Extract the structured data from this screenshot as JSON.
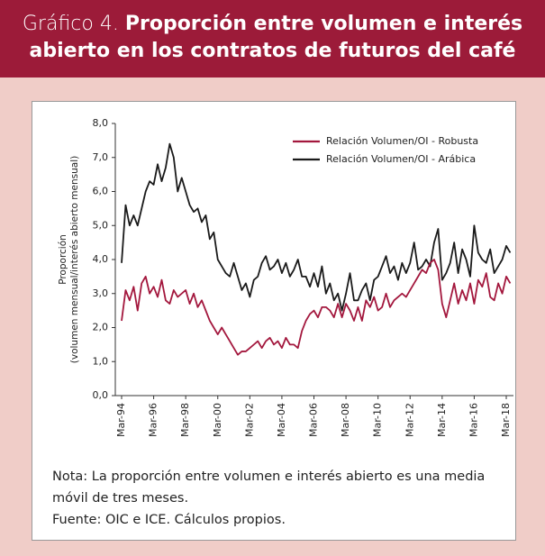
{
  "chart_data": {
    "type": "line",
    "title_label": "Gráfico 4.",
    "title": [
      "Proporción entre volumen e interés",
      "abierto en los contratos de futuros del café"
    ],
    "ylabel": [
      "Proporción",
      "(volumen mensual/interés abierto mensual)"
    ],
    "notes": [
      "Nota: La proporción entre volumen e interés abierto es una media",
      "móvil de tres meses.",
      "Fuente: OIC e ICE. Cálculos propios."
    ],
    "categories": [
      "Mar-94",
      null,
      null,
      null,
      null,
      null,
      null,
      null,
      "Mar-96",
      null,
      null,
      null,
      null,
      null,
      null,
      null,
      "Mar-98",
      null,
      null,
      null,
      null,
      null,
      null,
      null,
      "Mar-00",
      null,
      null,
      null,
      null,
      null,
      null,
      null,
      "Mar-02",
      null,
      null,
      null,
      null,
      null,
      null,
      null,
      "Mar-04",
      null,
      null,
      null,
      null,
      null,
      null,
      null,
      "Mar-06",
      null,
      null,
      null,
      null,
      null,
      null,
      null,
      "Mar-08",
      null,
      null,
      null,
      null,
      null,
      null,
      null,
      "Mar-10",
      null,
      null,
      null,
      null,
      null,
      null,
      null,
      "Mar-12",
      null,
      null,
      null,
      null,
      null,
      null,
      null,
      "Mar-14",
      null,
      null,
      null,
      null,
      null,
      null,
      null,
      "Mar-16",
      null,
      null,
      null,
      null,
      null,
      null,
      null,
      "Mar-18",
      null
    ],
    "series": [
      {
        "name": "Relación Volumen/OI - Robusta",
        "color": "#a3173d",
        "values": [
          2.2,
          3.1,
          2.8,
          3.2,
          2.5,
          3.3,
          3.5,
          3.0,
          3.2,
          2.9,
          3.4,
          2.8,
          2.7,
          3.1,
          2.9,
          3.0,
          3.1,
          2.7,
          3.0,
          2.6,
          2.8,
          2.5,
          2.2,
          2.0,
          1.8,
          2.0,
          1.8,
          1.6,
          1.4,
          1.2,
          1.3,
          1.3,
          1.4,
          1.5,
          1.6,
          1.4,
          1.6,
          1.7,
          1.5,
          1.6,
          1.4,
          1.7,
          1.5,
          1.5,
          1.4,
          1.9,
          2.2,
          2.4,
          2.5,
          2.3,
          2.6,
          2.6,
          2.5,
          2.3,
          2.7,
          2.3,
          2.7,
          2.5,
          2.2,
          2.6,
          2.2,
          2.8,
          2.6,
          2.9,
          2.5,
          2.6,
          3.0,
          2.6,
          2.8,
          2.9,
          3.0,
          2.9,
          3.1,
          3.3,
          3.5,
          3.7,
          3.6,
          3.9,
          4.0,
          3.7,
          2.7,
          2.3,
          2.8,
          3.3,
          2.7,
          3.1,
          2.8,
          3.3,
          2.7,
          3.4,
          3.2,
          3.6,
          2.9,
          2.8,
          3.3,
          3.0,
          3.5,
          3.3
        ]
      },
      {
        "name": "Relación Volumen/OI - Arábica",
        "color": "#1a1a1a",
        "values": [
          3.9,
          5.6,
          5.0,
          5.3,
          5.0,
          5.5,
          6.0,
          6.3,
          6.2,
          6.8,
          6.3,
          6.7,
          7.4,
          7.0,
          6.0,
          6.4,
          6.0,
          5.6,
          5.4,
          5.5,
          5.1,
          5.3,
          4.6,
          4.8,
          4.0,
          3.8,
          3.6,
          3.5,
          3.9,
          3.5,
          3.1,
          3.3,
          2.9,
          3.4,
          3.5,
          3.9,
          4.1,
          3.7,
          3.8,
          4.0,
          3.6,
          3.9,
          3.5,
          3.7,
          4.0,
          3.5,
          3.5,
          3.2,
          3.6,
          3.2,
          3.8,
          3.0,
          3.3,
          2.8,
          3.0,
          2.5,
          3.0,
          3.6,
          2.8,
          2.8,
          3.1,
          3.3,
          2.8,
          3.4,
          3.5,
          3.8,
          4.1,
          3.6,
          3.8,
          3.4,
          3.9,
          3.6,
          3.9,
          4.5,
          3.7,
          3.8,
          4.0,
          3.8,
          4.5,
          4.9,
          3.4,
          3.6,
          3.9,
          4.5,
          3.6,
          4.3,
          4.0,
          3.5,
          5.0,
          4.2,
          4.0,
          3.9,
          4.3,
          3.6,
          3.8,
          4.0,
          4.4,
          4.2
        ]
      }
    ],
    "ylim": [
      0,
      8
    ],
    "yticks": [
      {
        "value": 0,
        "label": "0,0"
      },
      {
        "value": 1,
        "label": "1,0"
      },
      {
        "value": 2,
        "label": "2,0"
      },
      {
        "value": 3,
        "label": "3,0"
      },
      {
        "value": 4,
        "label": "4,0"
      },
      {
        "value": 5,
        "label": "5,0"
      },
      {
        "value": 6,
        "label": "6,0"
      },
      {
        "value": 7,
        "label": "7,0"
      },
      {
        "value": 8,
        "label": "8,0"
      }
    ],
    "legend": "top-right"
  }
}
